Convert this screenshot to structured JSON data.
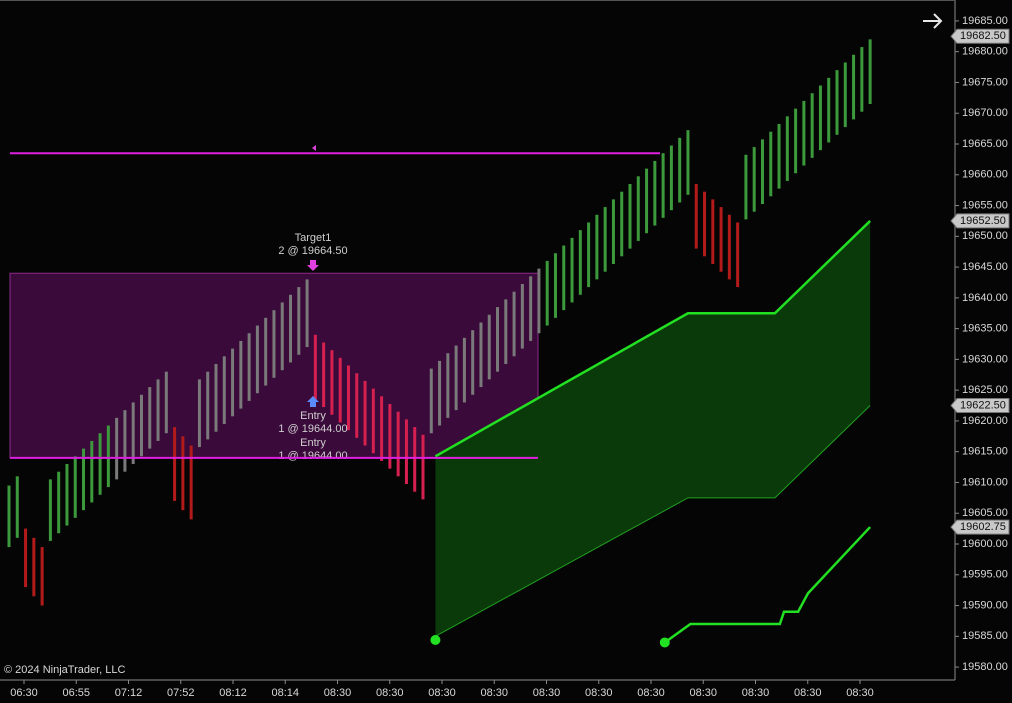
{
  "chart_data": {
    "type": "range-bar",
    "copyright": "© 2024 NinjaTrader, LLC",
    "ylim": [
      19577.9,
      19688.4
    ],
    "yticks": [
      {
        "value": 19580,
        "label": "19580.00"
      },
      {
        "value": 19585,
        "label": "19585.00"
      },
      {
        "value": 19590,
        "label": "19590.00"
      },
      {
        "value": 19595,
        "label": "19595.00"
      },
      {
        "value": 19600,
        "label": "19600.00"
      },
      {
        "value": 19605,
        "label": "19605.00"
      },
      {
        "value": 19610,
        "label": "19610.00"
      },
      {
        "value": 19615,
        "label": "19615.00"
      },
      {
        "value": 19620,
        "label": "19620.00"
      },
      {
        "value": 19625,
        "label": "19625.00"
      },
      {
        "value": 19630,
        "label": "19630.00"
      },
      {
        "value": 19635,
        "label": "19635.00"
      },
      {
        "value": 19640,
        "label": "19640.00"
      },
      {
        "value": 19645,
        "label": "19645.00"
      },
      {
        "value": 19650,
        "label": "19650.00"
      },
      {
        "value": 19655,
        "label": "19655.00"
      },
      {
        "value": 19660,
        "label": "19660.00"
      },
      {
        "value": 19665,
        "label": "19665.00"
      },
      {
        "value": 19670,
        "label": "19670.00"
      },
      {
        "value": 19675,
        "label": "19675.00"
      },
      {
        "value": 19680,
        "label": "19680.00"
      },
      {
        "value": 19685,
        "label": "19685.00"
      }
    ],
    "categories": [
      "06:30",
      "06:55",
      "07:12",
      "07:52",
      "08:12",
      "08:14",
      "08:30",
      "08:30",
      "08:30",
      "08:30",
      "08:30",
      "08:30",
      "08:30",
      "08:30",
      "08:30",
      "08:30",
      "08:30"
    ],
    "segments": [
      {
        "color": "#3c9a3c",
        "lows": [
          19599.5,
          19601
        ],
        "highs": [
          19609.5,
          19611
        ]
      },
      {
        "color": "#b31b1b",
        "lows": [
          19593,
          19591.5,
          19590
        ],
        "highs": [
          19602.5,
          19601,
          19599.5
        ]
      },
      {
        "color": "#3c9a3c",
        "lows": [
          19600.5,
          19601.75,
          19603,
          19604.25,
          19605.5,
          19606.75,
          19608,
          19609.25
        ],
        "highs": [
          19610.5,
          19611.75,
          19613,
          19614.25,
          19615.5,
          19616.75,
          19618,
          19619.25
        ]
      },
      {
        "color": "#7a7a7a",
        "lows": [
          19610.5,
          19611.75,
          19613,
          19614.25,
          19615.5,
          19616.75,
          19618
        ],
        "highs": [
          19620.5,
          19621.75,
          19623,
          19624.25,
          19625.5,
          19626.75,
          19628
        ]
      },
      {
        "color": "#b31b1b",
        "lows": [
          19607,
          19605.5,
          19604
        ],
        "highs": [
          19619,
          19617.5,
          19616
        ]
      },
      {
        "color": "#7a7a7a",
        "lows": [
          19615.75,
          19617,
          19618.25,
          19619.5,
          19620.75,
          19622,
          19623.25,
          19624.5,
          19625.75,
          19627,
          19628.25,
          19629.5,
          19630.75,
          19632
        ],
        "highs": [
          19626.75,
          19628,
          19629.25,
          19630.5,
          19631.75,
          19633,
          19634.25,
          19635.5,
          19636.75,
          19638,
          19639.25,
          19640.5,
          19641.75,
          19643
        ]
      },
      {
        "color": "#d6204f",
        "lows": [
          19623.5,
          19622.25,
          19621,
          19619.75,
          19618.5,
          19617.25,
          19616,
          19614.75,
          19613.5,
          19612.25,
          19611,
          19609.75,
          19608.5,
          19607.25
        ],
        "highs": [
          19634,
          19632.75,
          19631.5,
          19630.25,
          19629,
          19627.75,
          19626.5,
          19625.25,
          19624,
          19622.75,
          19621.5,
          19620.25,
          19619,
          19617.75
        ]
      },
      {
        "color": "#7a7a7a",
        "lows": [
          19618,
          19619.25,
          19620.5,
          19621.75,
          19623,
          19624.25,
          19625.5,
          19626.75,
          19628,
          19629.25,
          19630.5,
          19631.75,
          19633,
          19634.25
        ],
        "highs": [
          19628.5,
          19629.75,
          19631,
          19632.25,
          19633.5,
          19634.75,
          19636,
          19637.25,
          19638.5,
          19639.75,
          19641,
          19642.25,
          19643.5,
          19644.75
        ]
      },
      {
        "color": "#3c9a3c",
        "lows": [
          19635.5,
          19636.75,
          19638,
          19639.25,
          19640.5,
          19641.75,
          19643,
          19644.25,
          19645.5,
          19646.75,
          19648,
          19649.25,
          19650.5,
          19651.75,
          19653,
          19654.25,
          19655.5,
          19656.75
        ],
        "highs": [
          19646,
          19647.25,
          19648.5,
          19649.75,
          19651,
          19652.25,
          19653.5,
          19654.75,
          19656,
          19657.25,
          19658.5,
          19659.75,
          19661,
          19662.25,
          19663.5,
          19664.75,
          19666,
          19667.25
        ]
      },
      {
        "color": "#b31b1b",
        "lows": [
          19648,
          19646.75,
          19645.5,
          19644.25,
          19643,
          19641.75
        ],
        "highs": [
          19658.5,
          19657.25,
          19656,
          19654.75,
          19653.5,
          19652.25
        ]
      },
      {
        "color": "#3c9a3c",
        "lows": [
          19652.75,
          19654,
          19655.25,
          19656.5,
          19657.75,
          19659,
          19660.25,
          19661.5,
          19662.75,
          19664,
          19665.25,
          19666.5,
          19667.75,
          19669,
          19670.25,
          19671.5
        ],
        "highs": [
          19663.25,
          19664.5,
          19665.75,
          19667,
          19668.25,
          19669.5,
          19670.75,
          19672,
          19673.25,
          19674.5,
          19675.75,
          19677,
          19678.25,
          19679.5,
          19680.75,
          19682
        ]
      }
    ],
    "zone": {
      "top": 19644,
      "bottom": 19614,
      "color": "#3a0a3a"
    },
    "levels": [
      {
        "value": 19663.5,
        "color": "#e020e0"
      },
      {
        "value": 19614,
        "color": "#e020e0"
      }
    ],
    "band": {
      "x": [
        51.5,
        82,
        92.5,
        104
      ],
      "upper": [
        19614.25,
        19637.5,
        19637.5,
        19652.5
      ],
      "lower": [
        19585,
        19607.5,
        19607.5,
        19622.5
      ],
      "color": "#22e022",
      "fill": "#0a3a0a"
    },
    "trail": {
      "x": [
        79.2,
        82.3,
        93.1,
        93.6,
        95.3,
        96.5,
        104
      ],
      "values": [
        19584,
        19587,
        19587,
        19589,
        19589,
        19592,
        19602.75
      ],
      "color": "#22e022"
    },
    "dots": {
      "x": [
        51.5,
        79.2
      ],
      "values": [
        19584.4,
        19584
      ],
      "color": "#22e022"
    },
    "price_labels": [
      {
        "value": 19682.5,
        "label": "19682.50"
      },
      {
        "value": 19652.5,
        "label": "19652.50"
      },
      {
        "value": 19622.5,
        "label": "19622.50"
      },
      {
        "value": 19602.75,
        "label": "19602.75"
      }
    ],
    "orders": [
      {
        "label": "Target1",
        "detail": "2 @ 19664.50"
      },
      {
        "label": "Entry",
        "detail": "1 @ 19644.00"
      },
      {
        "label": "Entry",
        "detail": "1 @ 19644.00"
      }
    ]
  }
}
